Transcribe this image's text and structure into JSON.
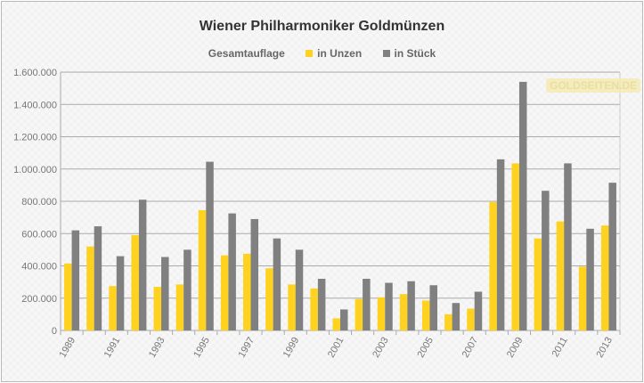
{
  "chart_data": {
    "type": "bar",
    "title": "Wiener Philharmoniker Goldmünzen",
    "legend_title": "Gesamtauflage",
    "legend_position": "top",
    "watermark": "GOLDSEITEN.DE",
    "categories": [
      "1989",
      "1990",
      "1991",
      "1992",
      "1993",
      "1994",
      "1995",
      "1996",
      "1997",
      "1998",
      "1999",
      "2000",
      "2001",
      "2002",
      "2003",
      "2004",
      "2005",
      "2006",
      "2007",
      "2008",
      "2009",
      "2010",
      "2011",
      "2012",
      "2013"
    ],
    "series": [
      {
        "name": "in Unzen",
        "color": "#FFD21F",
        "values": [
          415000,
          520000,
          275000,
          590000,
          270000,
          285000,
          745000,
          465000,
          475000,
          385000,
          285000,
          260000,
          75000,
          195000,
          205000,
          225000,
          185000,
          100000,
          135000,
          795000,
          1035000,
          570000,
          675000,
          395000,
          650000
        ]
      },
      {
        "name": "in Stück",
        "color": "#808080",
        "values": [
          620000,
          645000,
          460000,
          810000,
          455000,
          500000,
          1045000,
          725000,
          690000,
          570000,
          500000,
          320000,
          130000,
          320000,
          295000,
          305000,
          280000,
          170000,
          240000,
          1060000,
          1540000,
          865000,
          1035000,
          630000,
          915000
        ]
      }
    ],
    "ylim": [
      0,
      1600000
    ],
    "yticks": [
      "0",
      "200.000",
      "400.000",
      "600.000",
      "800.000",
      "1.000.000",
      "1.200.000",
      "1.400.000",
      "1.600.000"
    ],
    "xtick_labels": [
      "1989",
      "1991",
      "1993",
      "1995",
      "1997",
      "1999",
      "2001",
      "2003",
      "2005",
      "2007",
      "2009",
      "2011",
      "2013"
    ],
    "grid": true
  }
}
